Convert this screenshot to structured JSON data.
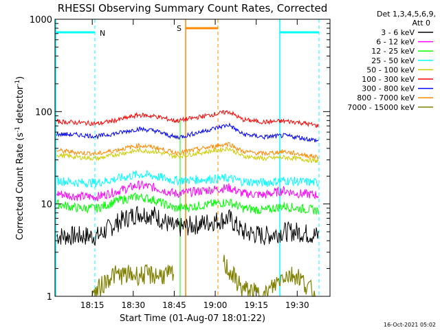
{
  "chart_data": {
    "type": "line",
    "title": "RHESSI Observing Summary Count Rates, Corrected",
    "xlabel": "Start Time (01-Aug-07 18:01:22)",
    "ylabel": "Corrected Count Rate (s",
    "ylabel_sup1": "-1",
    "ylabel_mid": " detector",
    "ylabel_sup2": "-1",
    "ylabel_end": ")",
    "y_scale": "log",
    "ylim": [
      1,
      1000
    ],
    "xlim": [
      "18:01:22",
      "19:42:00"
    ],
    "x_ticks": [
      "18:15",
      "18:30",
      "18:45",
      "19:00",
      "19:15",
      "19:30"
    ],
    "y_ticks": [
      "1",
      "10",
      "100",
      "1000"
    ],
    "legend": {
      "header_line1": "Det 1,3,4,5,6,9,",
      "header_line2": "Att 0",
      "placement": "right"
    },
    "series": [
      {
        "name": "3 - 6 keV",
        "color": "#000000",
        "x": [
          "18:02",
          "18:10",
          "18:17",
          "18:25",
          "18:32",
          "18:38",
          "18:45",
          "18:47",
          "19:05",
          "19:10",
          "19:18",
          "19:25",
          "19:30",
          "19:38"
        ],
        "y": [
          4.5,
          4.5,
          4.5,
          6.5,
          8.0,
          7.5,
          5.5,
          5.5,
          7.0,
          5.0,
          4.5,
          5.0,
          5.0,
          4.5
        ]
      },
      {
        "name": "6 - 12 keV",
        "color": "#ff00ff",
        "x": [
          "18:02",
          "18:10",
          "18:17",
          "18:25",
          "18:32",
          "18:38",
          "18:45",
          "18:47",
          "19:05",
          "19:10",
          "19:18",
          "19:25",
          "19:30",
          "19:38"
        ],
        "y": [
          13,
          12,
          12,
          14,
          16,
          15,
          13,
          13,
          15,
          13,
          12.5,
          14,
          13,
          12.5
        ]
      },
      {
        "name": "12 - 25 keV",
        "color": "#00ff00",
        "x": [
          "18:02",
          "18:10",
          "18:17",
          "18:25",
          "18:32",
          "18:38",
          "18:45",
          "18:47",
          "19:05",
          "19:10",
          "19:18",
          "19:25",
          "19:30",
          "19:38"
        ],
        "y": [
          10,
          9,
          9,
          11,
          12,
          11,
          9,
          9,
          10.5,
          9,
          8.5,
          9.5,
          9,
          8.5
        ]
      },
      {
        "name": "25 - 50 keV",
        "color": "#00ffff",
        "x": [
          "18:02",
          "18:10",
          "18:17",
          "18:25",
          "18:32",
          "18:38",
          "18:45",
          "18:47",
          "19:05",
          "19:10",
          "19:18",
          "19:25",
          "19:30",
          "19:38"
        ],
        "y": [
          18,
          17,
          17,
          19,
          21,
          20,
          18,
          18,
          19,
          17.5,
          17,
          18,
          17.5,
          17
        ]
      },
      {
        "name": "50 - 100 keV",
        "color": "#cccc00",
        "x": [
          "18:02",
          "18:10",
          "18:17",
          "18:25",
          "18:32",
          "18:38",
          "18:45",
          "18:47",
          "19:05",
          "19:10",
          "19:18",
          "19:25",
          "19:30",
          "19:38"
        ],
        "y": [
          34,
          32,
          31,
          35,
          38,
          37,
          33,
          33,
          40,
          33,
          31,
          32,
          31,
          29
        ]
      },
      {
        "name": "100 - 300 keV",
        "color": "#ff0000",
        "x": [
          "18:02",
          "18:10",
          "18:17",
          "18:25",
          "18:32",
          "18:38",
          "18:45",
          "18:47",
          "19:05",
          "19:10",
          "19:18",
          "19:25",
          "19:30",
          "19:38"
        ],
        "y": [
          78,
          76,
          74,
          82,
          92,
          89,
          80,
          80,
          100,
          82,
          77,
          79,
          77,
          70
        ]
      },
      {
        "name": "300 - 800 keV",
        "color": "#0000ff",
        "x": [
          "18:02",
          "18:10",
          "18:17",
          "18:25",
          "18:32",
          "18:38",
          "18:45",
          "18:47",
          "19:05",
          "19:10",
          "19:18",
          "19:25",
          "19:30",
          "19:38"
        ],
        "y": [
          57,
          56,
          54,
          59,
          65,
          62,
          53,
          53,
          72,
          57,
          53,
          55,
          53,
          48
        ]
      },
      {
        "name": "800 - 7000 keV",
        "color": "#ff8800",
        "x": [
          "18:02",
          "18:10",
          "18:17",
          "18:25",
          "18:32",
          "18:38",
          "18:45",
          "18:47",
          "19:05",
          "19:10",
          "19:18",
          "19:25",
          "19:30",
          "19:38"
        ],
        "y": [
          38,
          36,
          35,
          39,
          43,
          41,
          36,
          36,
          45,
          37,
          35,
          37,
          35,
          32
        ]
      },
      {
        "name": "7000 - 15000 keV",
        "color": "#808000",
        "x": [
          "18:15",
          "18:22",
          "18:30",
          "18:38",
          "18:45",
          "19:03",
          "19:10",
          "19:18",
          "19:25",
          "19:30",
          "19:37"
        ],
        "y": [
          1.0,
          1.7,
          1.7,
          1.7,
          1.7,
          2.3,
          1.2,
          1.0,
          1.7,
          1.7,
          1.0
        ]
      }
    ],
    "markers": [
      {
        "label": "N",
        "color": "#00ffff"
      },
      {
        "label": "S",
        "color": "#ff8800"
      }
    ],
    "timestamp": "16-Oct-2021 05:02"
  }
}
